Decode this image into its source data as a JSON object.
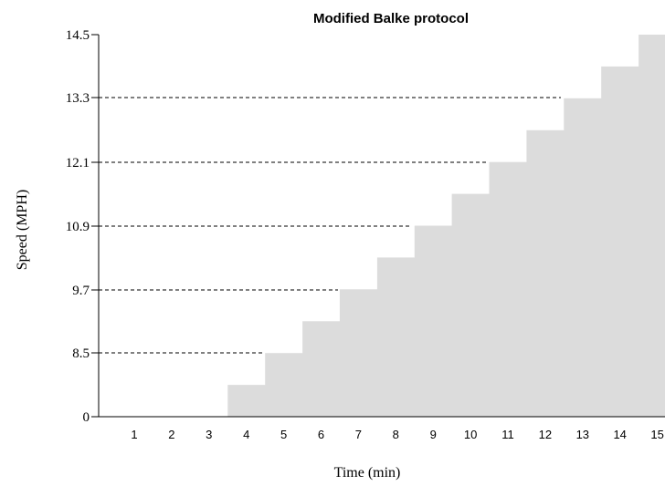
{
  "chart_data": {
    "type": "area",
    "title": "Modified Balke protocol",
    "xlabel": "Time (min)",
    "ylabel": "Speed (MPH)",
    "x_ticks": [
      "1",
      "2",
      "3",
      "4",
      "5",
      "6",
      "7",
      "8",
      "9",
      "10",
      "11",
      "12",
      "13",
      "14",
      "15"
    ],
    "y_ticks": [
      "0",
      "8.5",
      "9.7",
      "10.9",
      "12.1",
      "13.3",
      "14.5"
    ],
    "dashed_gridlines_at": [
      "8.5",
      "9.7",
      "10.9",
      "12.1",
      "13.3"
    ],
    "step_levels": [
      0,
      0,
      0,
      1,
      2,
      3,
      4,
      5,
      6,
      7,
      8,
      9,
      10,
      11,
      12
    ],
    "step_level_max": 12,
    "fill_color": "#dcdcdc"
  }
}
